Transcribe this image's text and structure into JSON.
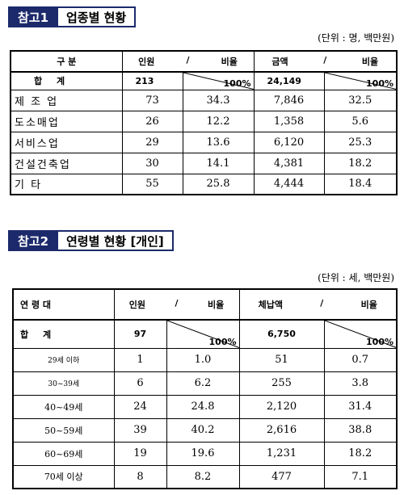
{
  "sections": [
    {
      "tag": "참고1",
      "title": "업종별 현황",
      "unit": "(단위 : 명, 백만원)",
      "header": {
        "group": "구 분",
        "count": "인원",
        "sep1": "/",
        "ratio1": "비율",
        "amount": "금액",
        "sep2": "/",
        "ratio2": "비율"
      },
      "total": {
        "label": "합 계",
        "count": "213",
        "ratio1": "100%",
        "amount": "24,149",
        "ratio2": "100%"
      },
      "rows": [
        [
          "제 조 업",
          "73",
          "34.3",
          "7,846",
          "32.5"
        ],
        [
          "도소매업",
          "26",
          "12.2",
          "1,358",
          "5.6"
        ],
        [
          "서비스업",
          "29",
          "13.6",
          "6,120",
          "25.3"
        ],
        [
          "건설건축업",
          "30",
          "14.1",
          "4,381",
          "18.2"
        ],
        [
          "기 타",
          "55",
          "25.8",
          "4,444",
          "18.4"
        ]
      ]
    },
    {
      "tag": "참고2",
      "title": "연령별 현황 [개인]",
      "unit": "(단위 : 세, 백만원)",
      "header": {
        "group": "연 령 대",
        "count": "인원",
        "sep1": "/",
        "ratio1": "비율",
        "amount": "체납액",
        "sep2": "/",
        "ratio2": "비율"
      },
      "total": {
        "label": "합 계",
        "count": "97",
        "ratio1": "100%",
        "amount": "6,750",
        "ratio2": "100%"
      },
      "rows": [
        [
          "29세 이하",
          "1",
          "1.0",
          "51",
          "0.7"
        ],
        [
          "30~39세",
          "6",
          "6.2",
          "255",
          "3.8"
        ],
        [
          "40~49세",
          "24",
          "24.8",
          "2,120",
          "31.4"
        ],
        [
          "50~59세",
          "39",
          "40.2",
          "2,616",
          "38.8"
        ],
        [
          "60~69세",
          "19",
          "19.6",
          "1,231",
          "18.2"
        ],
        [
          "70세 이상",
          "8",
          "8.2",
          "477",
          "7.1"
        ]
      ]
    }
  ]
}
